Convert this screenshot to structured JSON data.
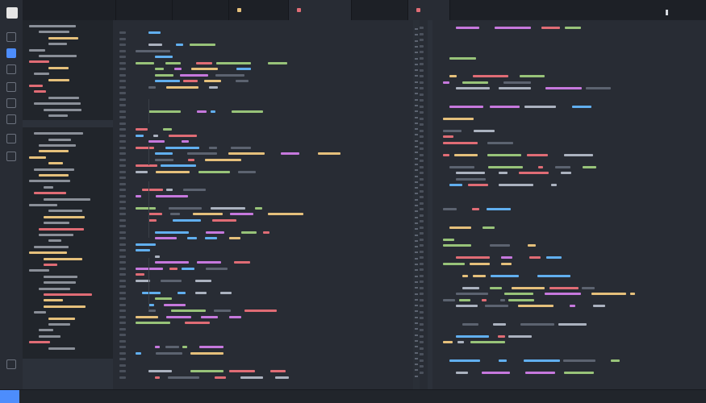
{
  "window": {
    "title": ""
  },
  "tabs": [
    {
      "label": "",
      "mark": ""
    },
    {
      "label": "",
      "mark": ""
    },
    {
      "label": "",
      "mark": ""
    },
    {
      "label": "",
      "mark": "#e5c07b"
    },
    {
      "label": "",
      "mark": "#e06c75"
    },
    {
      "label": "",
      "mark": ""
    },
    {
      "label": "",
      "mark": "#e06c75"
    }
  ],
  "colors": {
    "keyword": "#c678dd",
    "string": "#98c379",
    "variable": "#e06c75",
    "function": "#61afef",
    "type": "#e5c07b",
    "comment": "#5c6370",
    "text": "#abb2bf",
    "accent": "#4d8dfc"
  },
  "icons": [
    "logo-icon",
    "search-icon",
    "add-icon",
    "git-icon",
    "debug-icon",
    "extensions-icon",
    "settings-icon"
  ],
  "status": {
    "left": "",
    "right": ""
  }
}
